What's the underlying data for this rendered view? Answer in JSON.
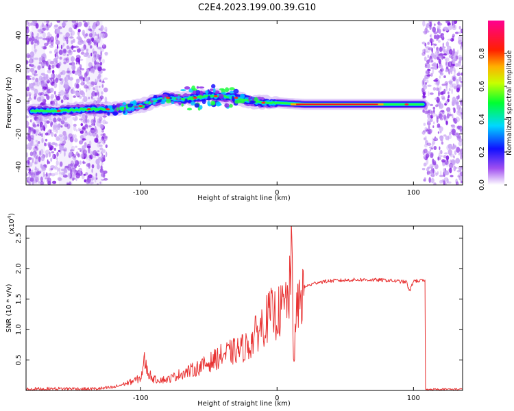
{
  "title": "C2E4.2023.199.00.39.G10",
  "chart_data": [
    {
      "type": "heatmap",
      "xlabel": "Height of straight line (km)",
      "ylabel": "Frequency (Hz)",
      "xlim": [
        -184,
        136
      ],
      "ylim": [
        -51,
        49
      ],
      "xticks": [
        -100,
        0,
        100
      ],
      "yticks": [
        -40,
        -20,
        0,
        20,
        40
      ],
      "colorbar": {
        "label": "Normalized spectral amplitude",
        "range": [
          0,
          1
        ],
        "ticks": [
          "0.0",
          "0.2",
          "0.4",
          "0.6",
          "0.8"
        ],
        "colors": [
          "#ffffff",
          "#7a00e0",
          "#0000ff",
          "#00d8ff",
          "#00ff00",
          "#ffff00",
          "#ff0000",
          "#ff0080"
        ]
      },
      "ridge": {
        "x": [
          -180,
          -160,
          -140,
          -120,
          -110,
          -100,
          -90,
          -80,
          -70,
          -60,
          -50,
          -40,
          -30,
          -20,
          -10,
          0,
          20,
          50,
          80,
          100,
          107
        ],
        "freq": [
          -6,
          -6,
          -5,
          -5,
          -4,
          -3,
          0,
          2,
          1,
          2,
          3,
          3,
          2,
          0,
          -1,
          -1,
          -2,
          -2,
          -2,
          -2,
          -2
        ]
      },
      "noise_regions_x": [
        [
          -184,
          -125
        ],
        [
          107,
          136
        ]
      ]
    },
    {
      "type": "line",
      "xlabel": "Height of straight line (km)",
      "ylabel": "SNR (10 * v/v)",
      "yscale_label": "(x10",
      "yscale_exp": "4",
      "xlim": [
        -184,
        136
      ],
      "ylim": [
        0,
        2.7
      ],
      "xticks": [
        -100,
        0,
        100
      ],
      "yticks": [
        0.5,
        1.0,
        1.5,
        2.0,
        2.5
      ],
      "ytick_labels": [
        "0.5",
        "1.0",
        "1.5",
        "2.0",
        "2.5"
      ],
      "line_color": "#e83232",
      "series": [
        {
          "x": [
            -184,
            -150,
            -140,
            -130,
            -120,
            -110,
            -100,
            -97,
            -95,
            -90,
            -80,
            -70,
            -60,
            -50,
            -40,
            -30,
            -20,
            -15,
            -10,
            -5,
            0,
            5,
            8,
            10,
            11,
            12,
            15,
            20,
            30,
            40,
            60,
            80,
            95,
            97,
            100,
            108,
            109,
            110,
            136
          ],
          "values": [
            0.02,
            0.03,
            0.02,
            0.03,
            0.05,
            0.12,
            0.2,
            0.5,
            0.3,
            0.18,
            0.18,
            0.28,
            0.35,
            0.45,
            0.58,
            0.65,
            0.75,
            0.95,
            1.1,
            1.25,
            1.25,
            1.35,
            1.55,
            1.7,
            2.65,
            0.45,
            1.4,
            1.7,
            1.78,
            1.8,
            1.82,
            1.81,
            1.78,
            1.62,
            1.8,
            1.8,
            1.78,
            0.02,
            0.02
          ]
        }
      ]
    }
  ]
}
